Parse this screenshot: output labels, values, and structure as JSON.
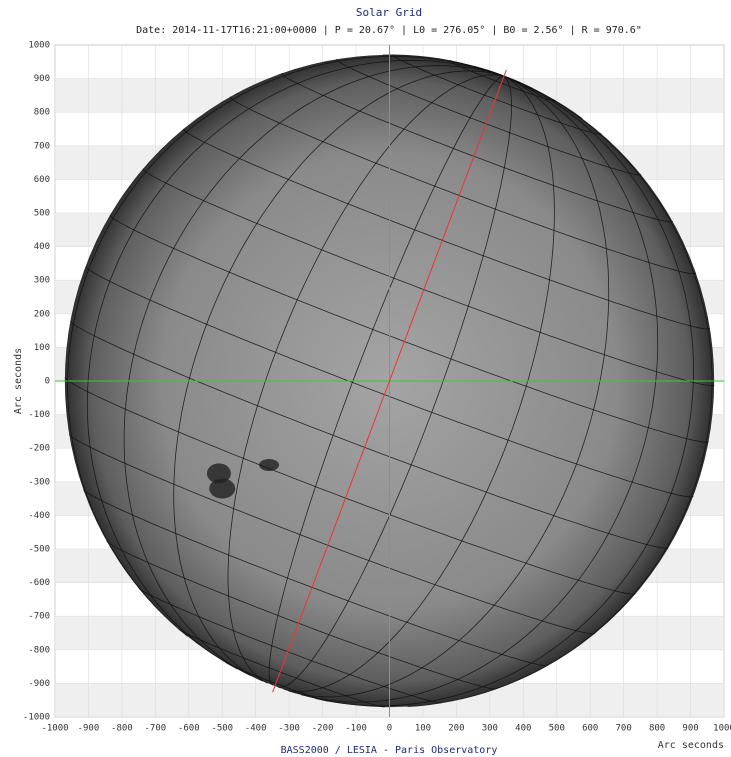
{
  "chart_data": {
    "type": "solar_grid",
    "title": "Solar Grid",
    "subtitle": "Date: 2014-11-17T16:21:00+0000 | P = 20.67° | L0 = 276.05° | B0 = 2.56° | R = 970.6\"",
    "x_label": "Arc seconds",
    "y_label": "Arc seconds",
    "footer": "BASS2000 / LESIA - Paris Observatory",
    "radius": 970.6,
    "p_angle": 20.67,
    "l0": 276.05,
    "b0": 2.56,
    "xlim": [
      -1000,
      1000
    ],
    "ylim": [
      -1000,
      1000
    ],
    "xticks": [
      -1000,
      -900,
      -800,
      -700,
      -600,
      -500,
      -400,
      -300,
      -200,
      -100,
      0,
      100,
      200,
      300,
      400,
      500,
      600,
      700,
      800,
      900,
      1000
    ],
    "yticks": [
      -1000,
      -900,
      -800,
      -700,
      -600,
      -500,
      -400,
      -300,
      -200,
      -100,
      0,
      100,
      200,
      300,
      400,
      500,
      600,
      700,
      800,
      900,
      1000
    ],
    "grid": true
  }
}
